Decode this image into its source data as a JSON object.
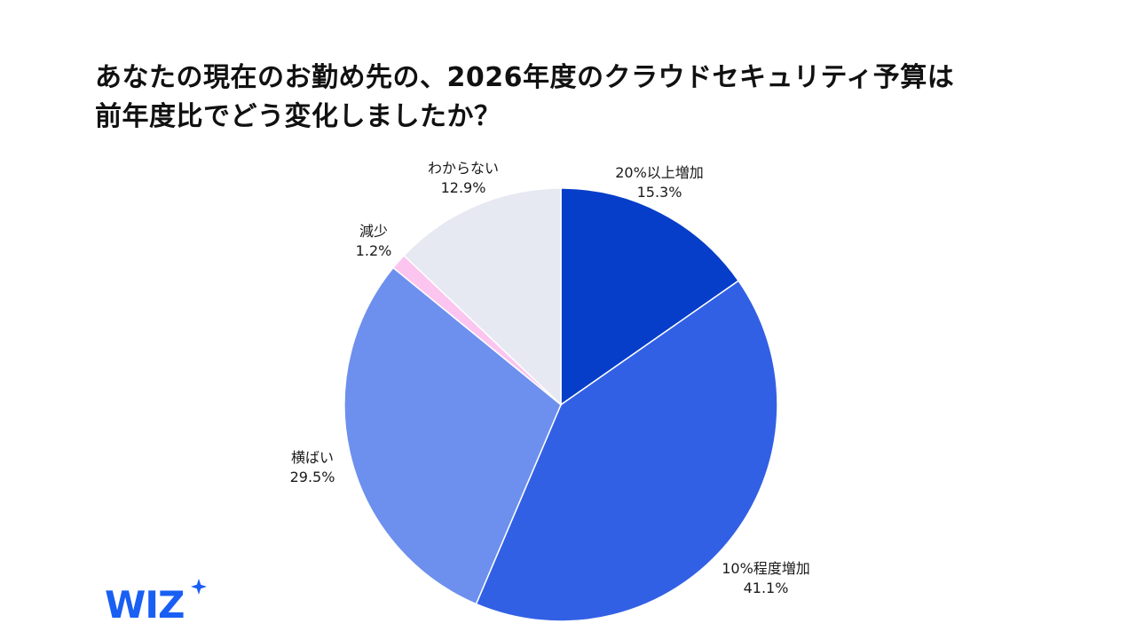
{
  "title": {
    "line1": "あなたの現在のお勤め先の、2026年度のクラウドセキュリティ予算は",
    "line2": "前年度比でどう変化しましたか？"
  },
  "chart_data": {
    "type": "pie",
    "slices": [
      {
        "label": "20%以上増加",
        "value": 15.3,
        "value_label": "15.3%",
        "color": "#063ec9"
      },
      {
        "label": "10%程度増加",
        "value": 41.1,
        "value_label": "41.1%",
        "color": "#3260e5"
      },
      {
        "label": "横ばい",
        "value": 29.5,
        "value_label": "29.5%",
        "color": "#6d90ee"
      },
      {
        "label": "減少",
        "value": 1.2,
        "value_label": "1.2%",
        "color": "#fbc5ef"
      },
      {
        "label": "わからない",
        "value": 12.9,
        "value_label": "12.9%",
        "color": "#e6e8f2"
      }
    ]
  },
  "logo": {
    "text": "WIZ",
    "color": "#1a5ff4"
  }
}
